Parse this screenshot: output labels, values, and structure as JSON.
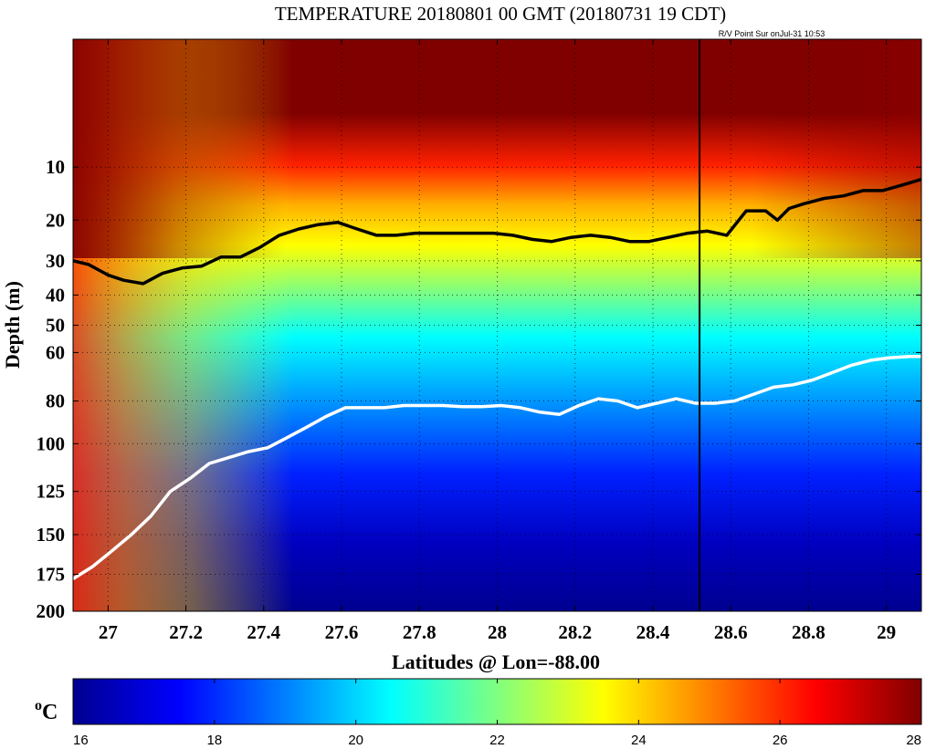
{
  "chart_data": {
    "type": "heatmap",
    "title": "TEMPERATURE 20180801 00 GMT (20180731 19 CDT)",
    "annotation": "R/V Point Sur onJul-31 10:53",
    "xlabel": "Latitudes @ Lon=-88.00",
    "ylabel": "Depth (m)",
    "xlim": [
      26.91,
      29.09
    ],
    "ylim": [
      0,
      200
    ],
    "y_axis_note": "depth increases downward; non-linear (square-root style) spacing",
    "x_ticks": [
      27,
      27.2,
      27.4,
      27.6,
      27.8,
      28,
      28.2,
      28.4,
      28.6,
      28.8,
      29
    ],
    "x_tick_labels": [
      "27",
      "27.2",
      "27.4",
      "27.6",
      "27.8",
      "28",
      "28.2",
      "28.4",
      "28.6",
      "28.8",
      "29"
    ],
    "y_ticks": [
      10,
      20,
      30,
      40,
      50,
      60,
      80,
      100,
      125,
      150,
      175,
      200
    ],
    "y_tick_labels": [
      "10",
      "20",
      "30",
      "40",
      "50",
      "60",
      "80",
      "100",
      "125",
      "150",
      "175",
      "200"
    ],
    "grid": true,
    "colorbar": {
      "label": "oC",
      "label_main": "C",
      "label_sup": "o",
      "range": [
        16,
        28
      ],
      "ticks": [
        16,
        18,
        20,
        22,
        24,
        26,
        28
      ],
      "tick_labels": [
        "16",
        "18",
        "20",
        "22",
        "24",
        "26",
        "28"
      ],
      "colormap": "jet"
    },
    "vessel_position_lat": 28.52,
    "series": [
      {
        "contour": "upper (black)",
        "color": "#000000",
        "x": [
          26.91,
          26.95,
          27.0,
          27.04,
          27.09,
          27.14,
          27.19,
          27.24,
          27.29,
          27.34,
          27.39,
          27.44,
          27.49,
          27.54,
          27.59,
          27.64,
          27.69,
          27.74,
          27.79,
          27.84,
          27.89,
          27.94,
          27.99,
          28.04,
          28.09,
          28.14,
          28.19,
          28.24,
          28.29,
          28.34,
          28.39,
          28.44,
          28.49,
          28.54,
          28.59,
          28.64,
          28.69,
          28.72,
          28.75,
          28.79,
          28.84,
          28.89,
          28.94,
          28.99,
          29.04,
          29.09
        ],
        "y": [
          30,
          31,
          34,
          35.5,
          36.5,
          33.5,
          32,
          31.5,
          29,
          29,
          26.5,
          23.5,
          22,
          21,
          20.5,
          22,
          23.5,
          23.5,
          23,
          23,
          23,
          23,
          23,
          23.5,
          24.5,
          25,
          24,
          23.5,
          24,
          25,
          25,
          24,
          23,
          22.5,
          23.5,
          18,
          18,
          20,
          17.5,
          16.5,
          15.5,
          15,
          14,
          14,
          13,
          12
        ]
      },
      {
        "contour": "lower (white)",
        "color": "#ffffff",
        "x": [
          26.91,
          26.96,
          27.01,
          27.06,
          27.11,
          27.16,
          27.21,
          27.26,
          27.31,
          27.36,
          27.41,
          27.46,
          27.51,
          27.56,
          27.61,
          27.66,
          27.71,
          27.76,
          27.81,
          27.86,
          27.91,
          27.96,
          28.01,
          28.06,
          28.11,
          28.16,
          28.21,
          28.26,
          28.31,
          28.36,
          28.41,
          28.46,
          28.51,
          28.56,
          28.61,
          28.66,
          28.71,
          28.76,
          28.81,
          28.86,
          28.91,
          28.96,
          29.01,
          29.06,
          29.09
        ],
        "y": [
          178,
          170,
          160,
          150,
          139,
          125,
          118,
          110,
          107,
          104,
          102,
          97,
          92,
          87,
          83,
          83,
          83,
          82,
          82,
          82,
          82.5,
          82.5,
          82,
          83,
          85,
          86,
          82,
          79,
          80,
          83,
          81,
          79,
          81,
          81,
          80,
          77,
          74,
          73,
          71,
          68,
          65,
          63,
          62,
          61.5,
          61.5
        ]
      }
    ]
  }
}
